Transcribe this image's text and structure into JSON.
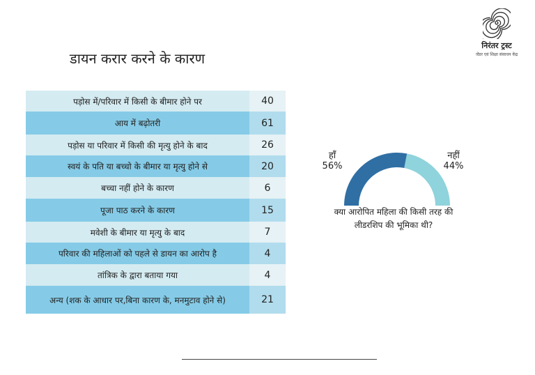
{
  "title": "डायन करार करने के कारण",
  "logo": {
    "name": "निरंतर ट्रस्ट",
    "tagline": "जेंडर एवं शिक्षा संसाधन केंद्र",
    "icon": "spiral-icon"
  },
  "colors": {
    "row_dark": "#85cbe7",
    "row_light": "#d4ebf1",
    "gauge_yes": "#2f6fa4",
    "gauge_no": "#8fd3dc"
  },
  "chart_data": [
    {
      "type": "table",
      "rows": [
        {
          "label": "पड़ोस में/परिवार में किसी के बीमार होने पर",
          "value": 40
        },
        {
          "label": "आय में बढ़ोतरी",
          "value": 61
        },
        {
          "label": "पड़ोस या परिवार में किसी की मृत्यु होने के बाद",
          "value": 26
        },
        {
          "label": "स्वयं के पति या बच्चो के बीमार या मृत्यु होने से",
          "value": 20
        },
        {
          "label": "बच्चा नहीं होने के कारण",
          "value": 6
        },
        {
          "label": "पूजा पाठ करने के कारण",
          "value": 15
        },
        {
          "label": "मवेशी के बीमार या मृत्यु के बाद",
          "value": 7
        },
        {
          "label": "परिवार की महिलाओं को पहले से डायन का आरोप है",
          "value": 4
        },
        {
          "label": "तांत्रिक के द्वारा बताया गया",
          "value": 4
        },
        {
          "label": "अन्य (शक के आधार पर,बिना कारण के, मनमुटाव होने से)",
          "value": 21
        }
      ]
    },
    {
      "type": "pie",
      "subtype": "half-donut",
      "question": "क्या आरोपित महिला की किसी तरह की लीडरशिप की भूमिका थी?",
      "slices": [
        {
          "label": "हाँ",
          "value": 56,
          "value_label": "56%",
          "color": "#2f6fa4"
        },
        {
          "label": "नहीं",
          "value": 44,
          "value_label": "44%",
          "color": "#8fd3dc"
        }
      ]
    }
  ]
}
